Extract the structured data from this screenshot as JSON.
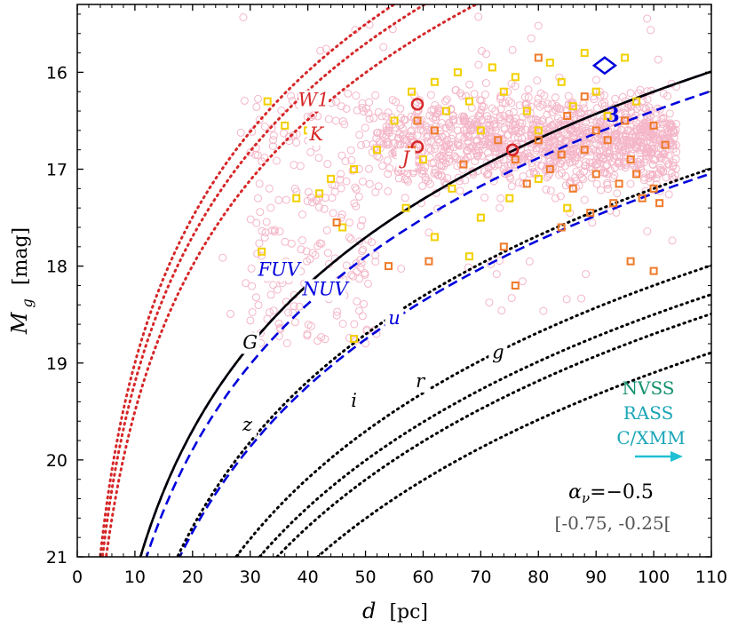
{
  "chart_data": {
    "type": "scatter",
    "xlabel_var": "d",
    "xlabel_unit": "[pc]",
    "ylabel_var": "M",
    "ylabel_sub": "g",
    "ylabel_unit": "[mag]",
    "xlim": [
      0,
      110
    ],
    "ylim": [
      21,
      15.3
    ],
    "x_ticks": [
      0,
      10,
      20,
      30,
      40,
      50,
      60,
      70,
      80,
      90,
      100,
      110
    ],
    "y_ticks": [
      16,
      17,
      18,
      19,
      20,
      21
    ],
    "curves": [
      {
        "name": "W1",
        "label": "W1",
        "style": "dotted",
        "color": "#d62728",
        "mlim": 19.5,
        "label_x": 41,
        "label_y": 16.35
      },
      {
        "name": "K",
        "label": "K",
        "style": "dotted",
        "color": "#d62728",
        "mlim": 19.2,
        "label_x": 41.5,
        "label_y": 16.7
      },
      {
        "name": "J",
        "label": "J",
        "style": "dotted",
        "color": "#d62728",
        "mlim": 19.0,
        "label_x": 57,
        "label_y": 16.95
      },
      {
        "name": "FUV",
        "label": "FUV",
        "style": "dashed",
        "color": "#0000dd",
        "mlim": 21.4,
        "label_x": 35,
        "label_y": 18.1
      },
      {
        "name": "NUV",
        "label": "NUV",
        "style": "dashed",
        "color": "#0000dd",
        "mlim": 21.2,
        "label_x": 43,
        "label_y": 18.3
      },
      {
        "name": "u",
        "label": "u",
        "style": "dashed",
        "color": "#0000dd",
        "mlim": 22.25,
        "label_x": 55,
        "label_y": 18.6
      },
      {
        "name": "G",
        "label": "G",
        "style": "solid",
        "color": "#000000",
        "mlim": 21.2,
        "label_x": 30,
        "label_y": 18.85
      },
      {
        "name": "z",
        "label": "z",
        "style": "dotted",
        "color": "#000000",
        "mlim": 22.2,
        "label_x": 29.5,
        "label_y": 19.7
      },
      {
        "name": "i",
        "label": "i",
        "style": "dotted",
        "color": "#000000",
        "mlim": 23.2,
        "label_x": 48,
        "label_y": 19.45
      },
      {
        "name": "r",
        "label": "r",
        "style": "dotted",
        "color": "#000000",
        "mlim": 23.5,
        "label_x": 59.5,
        "label_y": 19.25
      },
      {
        "name": "g",
        "label": "g",
        "style": "dotted",
        "color": "#000000",
        "mlim": 23.7,
        "label_x": 73,
        "label_y": 18.95
      },
      {
        "name": "g2",
        "label": "",
        "style": "dotted",
        "color": "#000000",
        "mlim": 24.1,
        "label_x": 0,
        "label_y": 0
      }
    ],
    "highlight_points": [
      {
        "x": 59,
        "y": 16.33,
        "marker": "circle",
        "color": "#d62728"
      },
      {
        "x": 59,
        "y": 16.77,
        "marker": "circle",
        "color": "#d62728"
      },
      {
        "x": 75.5,
        "y": 16.8,
        "marker": "circle",
        "color": "#d62728"
      },
      {
        "x": 91.5,
        "y": 15.93,
        "marker": "diamond",
        "color": "#0000dd"
      }
    ],
    "cloud": {
      "main_x": [
        50,
        104
      ],
      "main_y": [
        15.5,
        17.8
      ],
      "color": "#f4b6c8"
    },
    "yellow_squares": [
      [
        33,
        16.3
      ],
      [
        36,
        16.55
      ],
      [
        40,
        16.6
      ],
      [
        38,
        17.3
      ],
      [
        44,
        17.1
      ],
      [
        48,
        17.0
      ],
      [
        52,
        16.8
      ],
      [
        55,
        16.5
      ],
      [
        58,
        16.2
      ],
      [
        60,
        16.9
      ],
      [
        62,
        16.1
      ],
      [
        64,
        16.4
      ],
      [
        66,
        16.0
      ],
      [
        68,
        16.3
      ],
      [
        70,
        16.6
      ],
      [
        72,
        15.95
      ],
      [
        74,
        16.2
      ],
      [
        76,
        16.05
      ],
      [
        78,
        16.4
      ],
      [
        80,
        16.6
      ],
      [
        82,
        15.9
      ],
      [
        84,
        16.1
      ],
      [
        86,
        16.35
      ],
      [
        88,
        15.8
      ],
      [
        90,
        16.2
      ],
      [
        92,
        16.45
      ],
      [
        95,
        15.85
      ],
      [
        97,
        16.3
      ],
      [
        65,
        17.2
      ],
      [
        70,
        17.5
      ],
      [
        75,
        17.3
      ],
      [
        80,
        17.1
      ],
      [
        57,
        17.4
      ],
      [
        46,
        17.6
      ],
      [
        42,
        17.25
      ],
      [
        32,
        17.85
      ],
      [
        48,
        18.75
      ],
      [
        62,
        17.7
      ],
      [
        68,
        17.9
      ],
      [
        85,
        17.4
      ]
    ],
    "orange_squares": [
      [
        59,
        16.5
      ],
      [
        62,
        16.6
      ],
      [
        76,
        16.9
      ],
      [
        80,
        16.7
      ],
      [
        82,
        17.0
      ],
      [
        84,
        16.85
      ],
      [
        86,
        17.2
      ],
      [
        88,
        16.8
      ],
      [
        90,
        17.05
      ],
      [
        92,
        16.7
      ],
      [
        94,
        17.15
      ],
      [
        96,
        16.9
      ],
      [
        98,
        17.3
      ],
      [
        100,
        16.55
      ],
      [
        102,
        16.75
      ],
      [
        100,
        17.2
      ],
      [
        95,
        16.5
      ],
      [
        90,
        16.6
      ],
      [
        85,
        16.45
      ],
      [
        80,
        15.85
      ],
      [
        88,
        16.25
      ],
      [
        93,
        17.35
      ],
      [
        97,
        17.05
      ],
      [
        101,
        17.35
      ],
      [
        78,
        17.15
      ],
      [
        73,
        16.7
      ],
      [
        67,
        16.95
      ],
      [
        58,
        16.8
      ],
      [
        54,
        18.0
      ],
      [
        45,
        17.55
      ],
      [
        61,
        17.95
      ],
      [
        74,
        17.8
      ],
      [
        76,
        18.2
      ],
      [
        96,
        17.95
      ],
      [
        100,
        18.05
      ],
      [
        84,
        17.6
      ],
      [
        89,
        17.45
      ]
    ],
    "annotations": {
      "marker_number": "3",
      "legend_nvss": "NVSS",
      "legend_rass": "RASS",
      "legend_cxmm": "C/XMM",
      "alpha_text": "αν=−0.5",
      "alpha_symbol": "α",
      "alpha_sub": "ν",
      "alpha_value": "=−0.5",
      "range_text": "[-0.75, -0.25["
    }
  },
  "colors": {
    "nvss": "#13906e",
    "rass": "#1aa6b8",
    "cxmm": "#1aa6b8",
    "arrow": "#1fc0d3",
    "range": "#555555"
  }
}
